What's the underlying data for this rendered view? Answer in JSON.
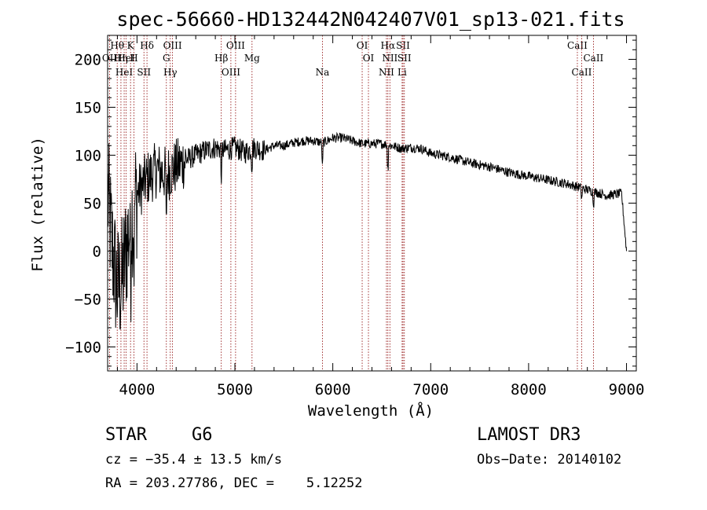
{
  "chart_data": {
    "type": "line",
    "title": "spec-56660-HD132442N042407V01_sp13-021.fits",
    "xlabel": "Wavelength (Å)",
    "ylabel": "Flux (relative)",
    "xlim": [
      3700,
      9100
    ],
    "ylim": [
      -125,
      225
    ],
    "xticks": [
      4000,
      5000,
      6000,
      7000,
      8000,
      9000
    ],
    "xtick_labels": [
      "4000",
      "5000",
      "6000",
      "7000",
      "8000",
      "9000"
    ],
    "yticks": [
      -100,
      -50,
      0,
      50,
      100,
      150,
      200
    ],
    "ytick_labels": [
      "−100",
      "−50",
      "0",
      "50",
      "100",
      "150",
      "200"
    ],
    "series": [
      {
        "name": "flux",
        "anchors_x": [
          3700,
          3750,
          3800,
          3850,
          3900,
          3950,
          4000,
          4100,
          4200,
          4300,
          4400,
          4500,
          4600,
          4700,
          4800,
          4900,
          5000,
          5100,
          5200,
          5300,
          5400,
          5500,
          5600,
          5700,
          5800,
          5900,
          6000,
          6100,
          6200,
          6300,
          6400,
          6500,
          6600,
          6700,
          6800,
          6900,
          7000,
          7200,
          7400,
          7600,
          7800,
          8000,
          8200,
          8400,
          8600,
          8800,
          8950,
          9000
        ],
        "anchors_y": [
          60,
          0,
          -40,
          -30,
          10,
          40,
          60,
          75,
          85,
          80,
          88,
          95,
          100,
          105,
          108,
          105,
          108,
          103,
          108,
          105,
          110,
          110,
          113,
          115,
          115,
          113,
          118,
          118,
          115,
          112,
          112,
          112,
          110,
          107,
          108,
          107,
          102,
          98,
          92,
          88,
          82,
          78,
          74,
          70,
          64,
          58,
          60,
          0
        ]
      }
    ],
    "lines": [
      {
        "x": 3720,
        "row": 1,
        "label": "OII"
      },
      {
        "x": 3798,
        "row": 0,
        "label": "Hθ"
      },
      {
        "x": 3836,
        "row": 1,
        "label": "Hη"
      },
      {
        "x": 3869,
        "row": 2,
        "label": "HeI"
      },
      {
        "x": 3889,
        "row": 1,
        "label": "HeI"
      },
      {
        "x": 3934,
        "row": 0,
        "label": "K"
      },
      {
        "x": 3969,
        "row": 1,
        "label": "H"
      },
      {
        "x": 4071,
        "row": 2,
        "label": "SII"
      },
      {
        "x": 4102,
        "row": 0,
        "label": "Hδ"
      },
      {
        "x": 4300,
        "row": 1,
        "label": "G"
      },
      {
        "x": 4340,
        "row": 2,
        "label": "Hγ"
      },
      {
        "x": 4363,
        "row": 0,
        "label": "OIII"
      },
      {
        "x": 4861,
        "row": 1,
        "label": "Hβ"
      },
      {
        "x": 4959,
        "row": 2,
        "label": "OIII"
      },
      {
        "x": 5007,
        "row": 0,
        "label": "OIII"
      },
      {
        "x": 5175,
        "row": 1,
        "label": "Mg"
      },
      {
        "x": 5894,
        "row": 2,
        "label": "Na"
      },
      {
        "x": 6300,
        "row": 0,
        "label": "OI"
      },
      {
        "x": 6364,
        "row": 1,
        "label": "OI"
      },
      {
        "x": 6548,
        "row": 2,
        "label": "NII"
      },
      {
        "x": 6563,
        "row": 0,
        "label": "Hα"
      },
      {
        "x": 6583,
        "row": 1,
        "label": "NII"
      },
      {
        "x": 6708,
        "row": 2,
        "label": "Li"
      },
      {
        "x": 6717,
        "row": 0,
        "label": "SII"
      },
      {
        "x": 6731,
        "row": 1,
        "label": "SII"
      },
      {
        "x": 8498,
        "row": 0,
        "label": "CaII"
      },
      {
        "x": 8542,
        "row": 2,
        "label": "CaII"
      },
      {
        "x": 8662,
        "row": 1,
        "label": "CaII"
      }
    ]
  },
  "info": {
    "class": "STAR",
    "subclass": "G6",
    "survey": "LAMOST DR3",
    "redshift": "cz = −35.4 ± 13.5 km/s",
    "obs_date": "Obs−Date: 20140102",
    "coords": "RA = 203.27786, DEC =    5.12252"
  },
  "colors": {
    "spectrum": "#000000",
    "line_marker": "#8b0000",
    "axis": "#000000"
  }
}
